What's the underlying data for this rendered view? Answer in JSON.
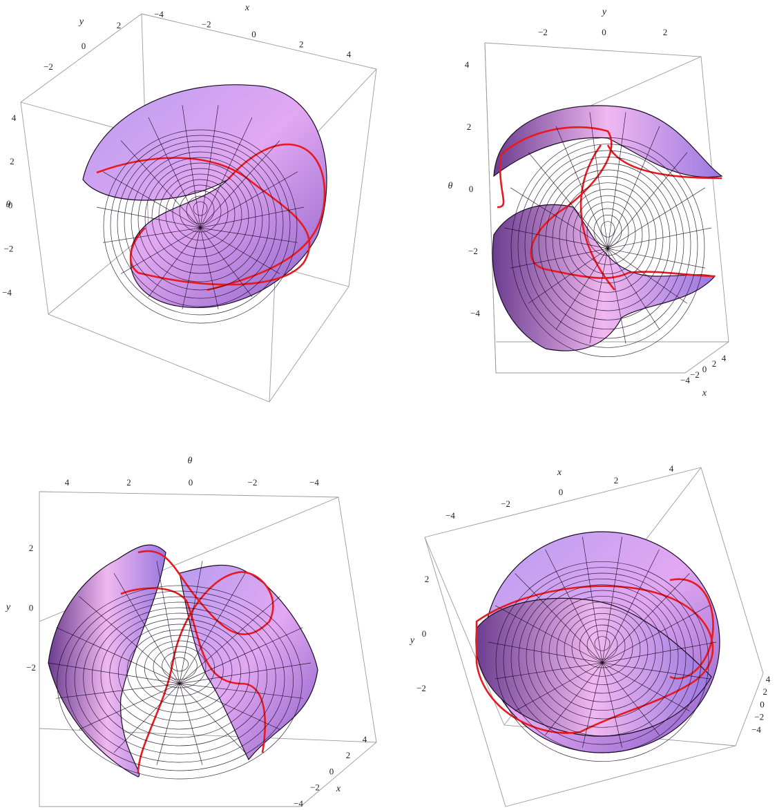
{
  "panels": [
    {
      "axes": {
        "x": {
          "label": "x",
          "ticks": [
            "−4",
            "−2",
            "0",
            "2",
            "4"
          ]
        },
        "y": {
          "label": "y",
          "ticks": [
            "2",
            "0",
            "−2"
          ]
        },
        "theta": {
          "label": "θ",
          "ticks": [
            "4",
            "2",
            "0",
            "−2",
            "−4"
          ]
        }
      }
    },
    {
      "axes": {
        "y": {
          "label": "y",
          "ticks": [
            "−2",
            "0",
            "2"
          ]
        },
        "theta": {
          "label": "θ",
          "ticks": [
            "4",
            "2",
            "0",
            "−2",
            "−4"
          ]
        },
        "x": {
          "label": "x",
          "ticks": [
            "−4",
            "−2",
            "0",
            "2",
            "4"
          ]
        }
      }
    },
    {
      "axes": {
        "theta": {
          "label": "θ",
          "ticks": [
            "4",
            "2",
            "0",
            "−2",
            "−4"
          ]
        },
        "y": {
          "label": "y",
          "ticks": [
            "2",
            "0",
            "−2"
          ]
        },
        "x": {
          "label": "x",
          "ticks": [
            "−4",
            "−2",
            "0",
            "2",
            "4"
          ]
        }
      }
    },
    {
      "axes": {
        "x": {
          "label": "x",
          "ticks": [
            "−4",
            "−2",
            "0",
            "2",
            "4"
          ]
        },
        "y": {
          "label": "y",
          "ticks": [
            "2",
            "0",
            "−2"
          ]
        },
        "z": {
          "ticks": [
            "4",
            "2",
            "0",
            "−2",
            "−4"
          ]
        }
      }
    }
  ]
}
